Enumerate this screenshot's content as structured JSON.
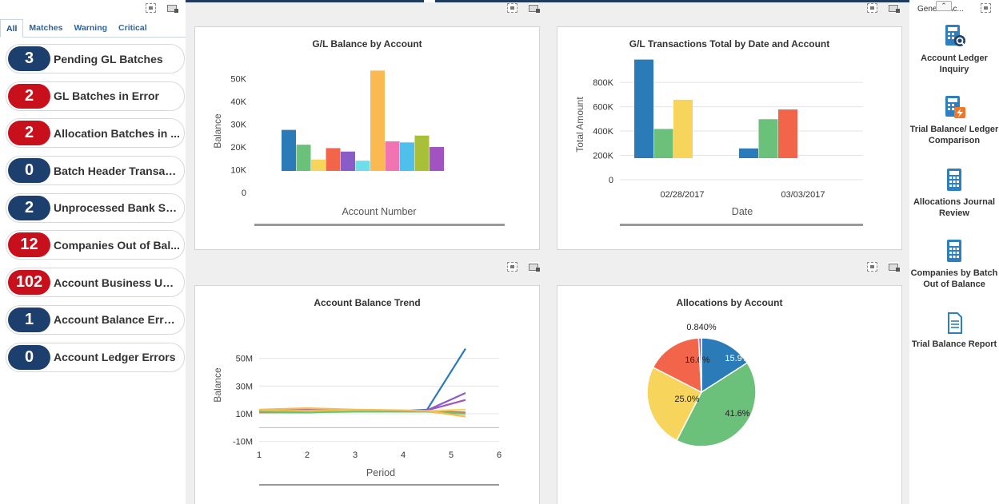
{
  "left_panel": {
    "tabs": [
      "All",
      "Matches",
      "Warning",
      "Critical"
    ],
    "active_tab": "All",
    "kpis": [
      {
        "count": "3",
        "label": "Pending GL Batches",
        "severity": "blue"
      },
      {
        "count": "2",
        "label": "GL Batches in Error",
        "severity": "red"
      },
      {
        "count": "2",
        "label": "Allocation Batches in ...",
        "severity": "red"
      },
      {
        "count": "0",
        "label": "Batch Header Transact...",
        "severity": "blue"
      },
      {
        "count": "2",
        "label": "Unprocessed Bank Sta...",
        "severity": "blue"
      },
      {
        "count": "12",
        "label": "Companies Out of Bal...",
        "severity": "red"
      },
      {
        "count": "102",
        "label": "Account Business Unit ...",
        "severity": "red"
      },
      {
        "count": "1",
        "label": "Account Balance Errors",
        "severity": "blue"
      },
      {
        "count": "0",
        "label": "Account Ledger Errors",
        "severity": "blue"
      }
    ]
  },
  "right_panel": {
    "header": "General Ac...",
    "items": [
      {
        "label": "Account Ledger Inquiry",
        "icon": "calculator-search-icon"
      },
      {
        "label": "Trial Balance/ Ledger Comparison",
        "icon": "calculator-lightning-icon"
      },
      {
        "label": "Allocations Journal Review",
        "icon": "calculator-icon"
      },
      {
        "label": "Companies by Batch Out of Balance",
        "icon": "calculator-icon"
      },
      {
        "label": "Trial Balance Report",
        "icon": "document-icon"
      }
    ]
  },
  "colors": {
    "blue": "#2b7bb9",
    "green": "#6cc17a",
    "yellow": "#f7d55c",
    "orange": "#f2654a",
    "purple": "#8a5cc7",
    "cyan": "#6ddfe8",
    "gold": "#fbb951",
    "pink": "#f073b2",
    "sky": "#4fc0ec",
    "olive": "#a7c038",
    "violet": "#a153c1"
  },
  "chart_data": [
    {
      "type": "bar",
      "title": "G/L Balance by Account",
      "xlabel": "Account Number",
      "ylabel": "Balance",
      "yticks": [
        "0",
        "10K",
        "20K",
        "30K",
        "40K",
        "50K"
      ],
      "ylim": [
        0,
        55000
      ],
      "values": [
        18000,
        11500,
        5000,
        10000,
        8500,
        4500,
        44000,
        13000,
        12500,
        15500,
        10500
      ],
      "bar_colors": [
        "#2b7bb9",
        "#6cc17a",
        "#f7d55c",
        "#f2654a",
        "#8a5cc7",
        "#6ddfe8",
        "#fbb951",
        "#f073b2",
        "#4fc0ec",
        "#a7c038",
        "#a153c1"
      ]
    },
    {
      "type": "bar",
      "title": "G/L Transactions Total by Date and Account",
      "xlabel": "Date",
      "ylabel": "Total Amount",
      "yticks": [
        "0",
        "200K",
        "400K",
        "600K",
        "800K"
      ],
      "ylim": [
        0,
        840000
      ],
      "categories": [
        "02/28/2017",
        "03/03/2017"
      ],
      "groups": [
        [
          {
            "value": 810000,
            "color": "#2b7bb9"
          },
          {
            "value": 240000,
            "color": "#6cc17a"
          },
          {
            "value": 480000,
            "color": "#f7d55c"
          }
        ],
        [
          {
            "value": 80000,
            "color": "#2b7bb9"
          },
          {
            "value": 320000,
            "color": "#6cc17a"
          },
          {
            "value": 400000,
            "color": "#f2654a"
          }
        ]
      ]
    },
    {
      "type": "line",
      "title": "Account Balance Trend",
      "xlabel": "Period",
      "ylabel": "Balance",
      "yticks": [
        "-10M",
        "10M",
        "30M",
        "50M"
      ],
      "xticks": [
        "1",
        "2",
        "3",
        "4",
        "5",
        "6"
      ],
      "ylim": [
        -20000000,
        70000000
      ],
      "xlim": [
        1,
        6
      ],
      "series": [
        {
          "color": "#2b7bb9",
          "points": [
            [
              1,
              12000000
            ],
            [
              2,
              12000000
            ],
            [
              3,
              12000000
            ],
            [
              4,
              12000000
            ],
            [
              4.5,
              13000000
            ],
            [
              5.3,
              57000000
            ]
          ]
        },
        {
          "color": "#8a5cc7",
          "points": [
            [
              1,
              12000000
            ],
            [
              2,
              13000000
            ],
            [
              3,
              12000000
            ],
            [
              4,
              12000000
            ],
            [
              4.5,
              12500000
            ],
            [
              5.3,
              25000000
            ]
          ]
        },
        {
          "color": "#a153c1",
          "points": [
            [
              1,
              12000000
            ],
            [
              2,
              12000000
            ],
            [
              3,
              12000000
            ],
            [
              4,
              12000000
            ],
            [
              4.5,
              12500000
            ],
            [
              5.3,
              20000000
            ]
          ]
        },
        {
          "color": "#f2654a",
          "points": [
            [
              1,
              11000000
            ],
            [
              2,
              11000000
            ],
            [
              3,
              12000000
            ],
            [
              4,
              12000000
            ],
            [
              4.5,
              12000000
            ],
            [
              5.3,
              11000000
            ]
          ]
        },
        {
          "color": "#f7d55c",
          "points": [
            [
              1,
              12000000
            ],
            [
              2,
              12000000
            ],
            [
              3,
              12000000
            ],
            [
              4,
              12000000
            ],
            [
              4.5,
              12000000
            ],
            [
              5.3,
              13000000
            ]
          ]
        },
        {
          "color": "#6cc17a",
          "points": [
            [
              1,
              11500000
            ],
            [
              2,
              11000000
            ],
            [
              3,
              11500000
            ],
            [
              4,
              11500000
            ],
            [
              4.5,
              11500000
            ],
            [
              5.3,
              10000000
            ]
          ]
        },
        {
          "color": "#fbb951",
          "points": [
            [
              1,
              13000000
            ],
            [
              2,
              14000000
            ],
            [
              3,
              13000000
            ],
            [
              4,
              12500000
            ],
            [
              4.5,
              12000000
            ],
            [
              5.3,
              8000000
            ]
          ]
        }
      ]
    },
    {
      "type": "pie",
      "title": "Allocations by Account",
      "slices": [
        {
          "label": "15.9%",
          "value": 15.9,
          "color": "#2b7bb9"
        },
        {
          "label": "41.6%",
          "value": 41.6,
          "color": "#6cc17a"
        },
        {
          "label": "25.0%",
          "value": 25.0,
          "color": "#f7d55c"
        },
        {
          "label": "16.6%",
          "value": 16.6,
          "color": "#f2654a"
        },
        {
          "label": "0.840%",
          "value": 0.84,
          "color": "#8a5cc7"
        }
      ]
    }
  ]
}
